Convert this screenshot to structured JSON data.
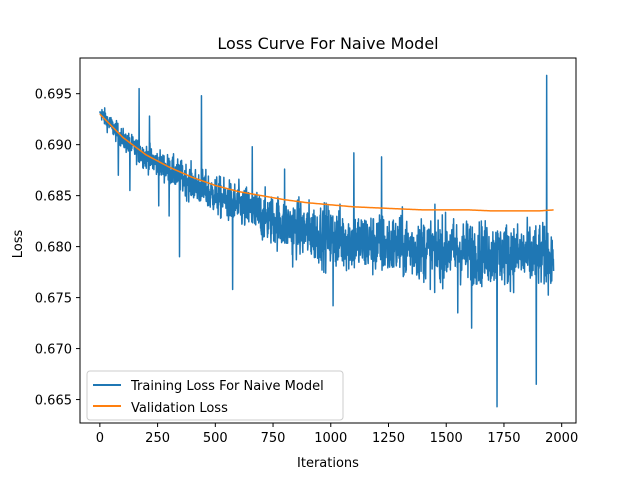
{
  "chart_data": {
    "type": "line",
    "title": "Loss Curve For Naive Model",
    "xlabel": "Iterations",
    "ylabel": "Loss",
    "xlim": [
      -86,
      2062
    ],
    "ylim": [
      0.6627,
      0.6985
    ],
    "xticks": [
      0,
      250,
      500,
      750,
      1000,
      1250,
      1500,
      1750,
      2000
    ],
    "xtick_labels": [
      "0",
      "250",
      "500",
      "750",
      "1000",
      "1250",
      "1500",
      "1750",
      "2000"
    ],
    "yticks": [
      0.665,
      0.67,
      0.675,
      0.68,
      0.685,
      0.69,
      0.695
    ],
    "ytick_labels": [
      "0.665",
      "0.670",
      "0.675",
      "0.680",
      "0.685",
      "0.690",
      "0.695"
    ],
    "grid": false,
    "legend_position": "lower-left",
    "series": [
      {
        "name": "Training Loss For Naive Model",
        "color": "#1f77b4",
        "style": "noisy-line",
        "x_range": [
          0,
          1965
        ],
        "trend": [
          [
            0,
            0.6932
          ],
          [
            100,
            0.6905
          ],
          [
            200,
            0.6888
          ],
          [
            300,
            0.6875
          ],
          [
            400,
            0.6862
          ],
          [
            500,
            0.685
          ],
          [
            600,
            0.684
          ],
          [
            700,
            0.683
          ],
          [
            800,
            0.6822
          ],
          [
            900,
            0.6815
          ],
          [
            1000,
            0.681
          ],
          [
            1100,
            0.6805
          ],
          [
            1200,
            0.6802
          ],
          [
            1300,
            0.68
          ],
          [
            1400,
            0.6798
          ],
          [
            1500,
            0.6797
          ],
          [
            1600,
            0.6795
          ],
          [
            1700,
            0.6793
          ],
          [
            1800,
            0.6792
          ],
          [
            1900,
            0.6791
          ],
          [
            1965,
            0.679
          ]
        ],
        "spikes": [
          [
            80,
            0.687
          ],
          [
            130,
            0.6855
          ],
          [
            170,
            0.6955
          ],
          [
            215,
            0.6928
          ],
          [
            255,
            0.684
          ],
          [
            300,
            0.683
          ],
          [
            345,
            0.679
          ],
          [
            440,
            0.6948
          ],
          [
            575,
            0.6758
          ],
          [
            660,
            0.6898
          ],
          [
            800,
            0.6876
          ],
          [
            835,
            0.678
          ],
          [
            1010,
            0.6742
          ],
          [
            1100,
            0.6892
          ],
          [
            1220,
            0.6888
          ],
          [
            1450,
            0.6755
          ],
          [
            1550,
            0.6735
          ],
          [
            1610,
            0.672
          ],
          [
            1720,
            0.6643
          ],
          [
            1890,
            0.6665
          ],
          [
            1935,
            0.6968
          ]
        ]
      },
      {
        "name": "Validation Loss",
        "color": "#ff7f0e",
        "style": "smooth-line",
        "points": [
          [
            0,
            0.693
          ],
          [
            100,
            0.6907
          ],
          [
            200,
            0.689
          ],
          [
            300,
            0.6878
          ],
          [
            400,
            0.6868
          ],
          [
            500,
            0.686
          ],
          [
            600,
            0.6854
          ],
          [
            700,
            0.685
          ],
          [
            800,
            0.6846
          ],
          [
            900,
            0.6843
          ],
          [
            1000,
            0.6841
          ],
          [
            1100,
            0.6839
          ],
          [
            1200,
            0.6838
          ],
          [
            1300,
            0.6837
          ],
          [
            1400,
            0.6836
          ],
          [
            1500,
            0.6836
          ],
          [
            1600,
            0.6836
          ],
          [
            1700,
            0.6835
          ],
          [
            1800,
            0.6835
          ],
          [
            1900,
            0.6835
          ],
          [
            1965,
            0.6836
          ]
        ]
      }
    ]
  }
}
